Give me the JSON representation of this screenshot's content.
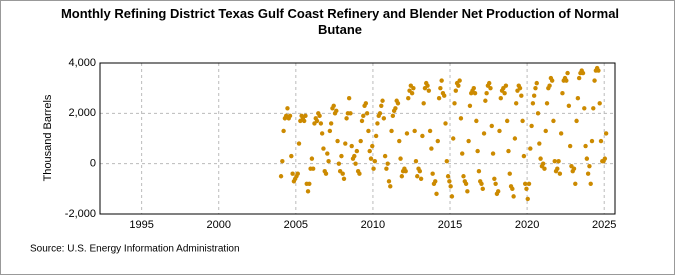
{
  "chart_data": {
    "type": "scatter",
    "title": "Monthly Refining District Texas Gulf Coast Refinery and Blender Net Production of Normal Butane",
    "y_label": "Thousand Barrels",
    "source": "Source: U.S. Energy Information Administration",
    "color": "#cc8a00",
    "grid": true,
    "xlim": [
      1992.3,
      2025.7
    ],
    "xticks": [
      1995,
      2000,
      2005,
      2010,
      2015,
      2020,
      2025
    ],
    "ylim": [
      -2000,
      4000
    ],
    "yticks": [
      {
        "value": -2000,
        "label": "-2,000"
      },
      0,
      {
        "value": 2000,
        "label": "2,000"
      },
      {
        "value": 4000,
        "label": "4,000"
      }
    ],
    "x": [
      2004.042,
      2004.125,
      2004.208,
      2004.292,
      2004.375,
      2004.458,
      2004.542,
      2004.625,
      2004.708,
      2004.792,
      2004.875,
      2004.958,
      2005.042,
      2005.125,
      2005.208,
      2005.292,
      2005.375,
      2005.458,
      2005.542,
      2005.625,
      2005.708,
      2005.792,
      2005.875,
      2005.958,
      2006.042,
      2006.125,
      2006.208,
      2006.292,
      2006.375,
      2006.458,
      2006.542,
      2006.625,
      2006.708,
      2006.792,
      2006.875,
      2006.958,
      2007.042,
      2007.125,
      2007.208,
      2007.292,
      2007.375,
      2007.458,
      2007.542,
      2007.625,
      2007.708,
      2007.792,
      2007.875,
      2007.958,
      2008.042,
      2008.125,
      2008.208,
      2008.292,
      2008.375,
      2008.458,
      2008.542,
      2008.625,
      2008.708,
      2008.792,
      2008.875,
      2008.958,
      2009.042,
      2009.125,
      2009.208,
      2009.292,
      2009.375,
      2009.458,
      2009.542,
      2009.625,
      2009.708,
      2009.792,
      2009.875,
      2009.958,
      2010.042,
      2010.125,
      2010.208,
      2010.292,
      2010.375,
      2010.458,
      2010.542,
      2010.625,
      2010.708,
      2010.792,
      2010.875,
      2010.958,
      2011.042,
      2011.125,
      2011.208,
      2011.292,
      2011.375,
      2011.458,
      2011.542,
      2011.625,
      2011.708,
      2011.792,
      2011.875,
      2011.958,
      2012.042,
      2012.125,
      2012.208,
      2012.292,
      2012.375,
      2012.458,
      2012.542,
      2012.625,
      2012.708,
      2012.792,
      2012.875,
      2012.958,
      2013.042,
      2013.125,
      2013.208,
      2013.292,
      2013.375,
      2013.458,
      2013.542,
      2013.625,
      2013.708,
      2013.792,
      2013.875,
      2013.958,
      2014.042,
      2014.125,
      2014.208,
      2014.292,
      2014.375,
      2014.458,
      2014.542,
      2014.625,
      2014.708,
      2014.792,
      2014.875,
      2014.958,
      2015.042,
      2015.125,
      2015.208,
      2015.292,
      2015.375,
      2015.458,
      2015.542,
      2015.625,
      2015.708,
      2015.792,
      2015.875,
      2015.958,
      2016.042,
      2016.125,
      2016.208,
      2016.292,
      2016.375,
      2016.458,
      2016.542,
      2016.625,
      2016.708,
      2016.792,
      2016.875,
      2016.958,
      2017.042,
      2017.125,
      2017.208,
      2017.292,
      2017.375,
      2017.458,
      2017.542,
      2017.625,
      2017.708,
      2017.792,
      2017.875,
      2017.958,
      2018.042,
      2018.125,
      2018.208,
      2018.292,
      2018.375,
      2018.458,
      2018.542,
      2018.625,
      2018.708,
      2018.792,
      2018.875,
      2018.958,
      2019.042,
      2019.125,
      2019.208,
      2019.292,
      2019.375,
      2019.458,
      2019.542,
      2019.625,
      2019.708,
      2019.792,
      2019.875,
      2019.958,
      2020.042,
      2020.125,
      2020.208,
      2020.292,
      2020.375,
      2020.458,
      2020.542,
      2020.625,
      2020.708,
      2020.792,
      2020.875,
      2020.958,
      2021.042,
      2021.125,
      2021.208,
      2021.292,
      2021.375,
      2021.458,
      2021.542,
      2021.625,
      2021.708,
      2021.792,
      2021.875,
      2021.958,
      2022.042,
      2022.125,
      2022.208,
      2022.292,
      2022.375,
      2022.458,
      2022.542,
      2022.625,
      2022.708,
      2022.792,
      2022.875,
      2022.958,
      2023.042,
      2023.125,
      2023.208,
      2023.292,
      2023.375,
      2023.458,
      2023.542,
      2023.625,
      2023.708,
      2023.792,
      2023.875,
      2023.958,
      2024.042,
      2024.125,
      2024.208,
      2024.292,
      2024.375,
      2024.458,
      2024.542,
      2024.625,
      2024.708,
      2024.792,
      2024.875,
      2024.958,
      2025.042,
      2025.125
    ],
    "values": [
      -500,
      100,
      1300,
      1800,
      1900,
      2200,
      1800,
      1900,
      300,
      -400,
      -700,
      -600,
      -500,
      -400,
      800,
      1700,
      1900,
      1800,
      1700,
      1900,
      -800,
      -1100,
      -800,
      -200,
      200,
      -200,
      1600,
      1800,
      1700,
      2000,
      1900,
      1600,
      1200,
      600,
      -300,
      -400,
      400,
      100,
      1300,
      1600,
      2200,
      2300,
      2000,
      2100,
      900,
      0,
      -300,
      300,
      -400,
      -600,
      800,
      1800,
      2000,
      2600,
      2000,
      700,
      200,
      300,
      0,
      500,
      -300,
      -400,
      900,
      1700,
      1900,
      2300,
      2400,
      2000,
      1300,
      500,
      200,
      700,
      -200,
      100,
      1100,
      1600,
      1900,
      2000,
      2300,
      2500,
      1800,
      300,
      -200,
      0,
      -700,
      -900,
      1300,
      1900,
      2100,
      2200,
      2500,
      2400,
      900,
      200,
      -500,
      -300,
      -200,
      -300,
      1200,
      2600,
      2900,
      3100,
      2800,
      3000,
      1300,
      100,
      -500,
      -200,
      -300,
      -600,
      1100,
      2400,
      3000,
      3200,
      3100,
      2900,
      1300,
      600,
      -400,
      -800,
      -700,
      -1200,
      900,
      2600,
      3000,
      3300,
      2800,
      2700,
      1600,
      100,
      -500,
      -700,
      -900,
      -1300,
      1000,
      2400,
      2900,
      3200,
      3100,
      3300,
      1800,
      400,
      -500,
      -700,
      -800,
      -1100,
      900,
      2300,
      2800,
      2900,
      3000,
      2800,
      1700,
      500,
      -300,
      -700,
      -800,
      -1000,
      1200,
      2500,
      2800,
      3100,
      3200,
      3000,
      1500,
      400,
      -600,
      -800,
      -1200,
      -1100,
      1300,
      2600,
      2900,
      3000,
      2800,
      3100,
      1700,
      500,
      -400,
      -900,
      -1000,
      -1300,
      1000,
      2400,
      2900,
      3100,
      3000,
      2700,
      1700,
      300,
      -800,
      -1000,
      -1400,
      -800,
      600,
      1500,
      2400,
      2700,
      3000,
      3200,
      2000,
      800,
      200,
      -100,
      0,
      -200,
      1300,
      2400,
      3000,
      3100,
      3400,
      3300,
      1700,
      100,
      -300,
      -200,
      100,
      -400,
      1200,
      2800,
      3300,
      3400,
      3300,
      3600,
      2300,
      700,
      -100,
      -300,
      -200,
      -800,
      1700,
      2600,
      3400,
      3600,
      3700,
      3600,
      2200,
      700,
      200,
      -400,
      -100,
      -800,
      900,
      2200,
      3300,
      3700,
      3800,
      3700,
      2400,
      900,
      100,
      100,
      200,
      1200
    ]
  }
}
